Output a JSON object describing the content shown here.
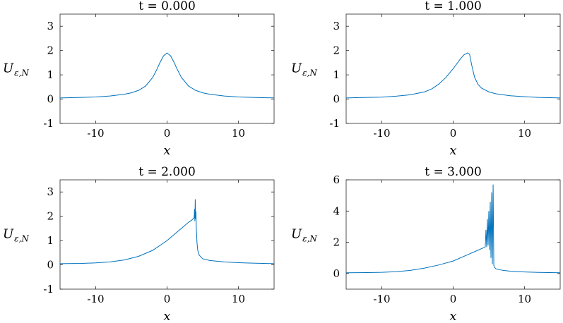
{
  "chart_data": [
    {
      "type": "line",
      "title": "t = 0.000",
      "xlabel": "x",
      "ylabel_main": "U",
      "ylabel_sub": "ε,N",
      "xlim": [
        -15,
        15
      ],
      "ylim": [
        -1,
        3.5
      ],
      "xticks": [
        -10,
        0,
        10
      ],
      "xtick_labels": [
        "-10",
        "0",
        "10"
      ],
      "yticks": [
        -1,
        0,
        1,
        2,
        3
      ],
      "ytick_labels": [
        "-1",
        "0",
        "1",
        "2",
        "3"
      ],
      "series": [
        {
          "color": "#0072BD",
          "x": [
            -15,
            -12,
            -10,
            -8,
            -6,
            -5,
            -4,
            -3,
            -2,
            -1.5,
            -1,
            -0.5,
            0,
            0.5,
            1,
            1.5,
            2,
            3,
            4,
            5,
            6,
            8,
            10,
            12,
            15
          ],
          "y": [
            0.05,
            0.07,
            0.09,
            0.13,
            0.2,
            0.26,
            0.36,
            0.54,
            0.9,
            1.18,
            1.5,
            1.78,
            1.9,
            1.78,
            1.5,
            1.18,
            0.9,
            0.54,
            0.36,
            0.26,
            0.2,
            0.13,
            0.09,
            0.07,
            0.05
          ]
        }
      ]
    },
    {
      "type": "line",
      "title": "t = 1.000",
      "xlabel": "x",
      "ylabel_main": "U",
      "ylabel_sub": "ε,N",
      "xlim": [
        -15,
        15
      ],
      "ylim": [
        -1,
        3.5
      ],
      "xticks": [
        -10,
        0,
        10
      ],
      "xtick_labels": [
        "-10",
        "0",
        "10"
      ],
      "yticks": [
        -1,
        0,
        1,
        2,
        3
      ],
      "ytick_labels": [
        "-1",
        "0",
        "1",
        "2",
        "3"
      ],
      "series": [
        {
          "color": "#0072BD",
          "x": [
            -15,
            -12,
            -10,
            -8,
            -6,
            -4,
            -3,
            -2,
            -1,
            0,
            0.5,
            1,
            1.5,
            2,
            2.3,
            2.6,
            3,
            3.5,
            4,
            5,
            6,
            8,
            10,
            12,
            15
          ],
          "y": [
            0.05,
            0.07,
            0.08,
            0.12,
            0.18,
            0.3,
            0.42,
            0.62,
            0.9,
            1.25,
            1.45,
            1.65,
            1.82,
            1.9,
            1.85,
            1.4,
            0.9,
            0.6,
            0.45,
            0.3,
            0.22,
            0.14,
            0.1,
            0.07,
            0.05
          ]
        }
      ]
    },
    {
      "type": "line",
      "title": "t = 2.000",
      "xlabel": "x",
      "ylabel_main": "U",
      "ylabel_sub": "ε,N",
      "xlim": [
        -15,
        15
      ],
      "ylim": [
        -1,
        3.5
      ],
      "xticks": [
        -10,
        0,
        10
      ],
      "xtick_labels": [
        "-10",
        "0",
        "10"
      ],
      "yticks": [
        -1,
        0,
        1,
        2,
        3
      ],
      "ytick_labels": [
        "-1",
        "0",
        "1",
        "2",
        "3"
      ],
      "series": [
        {
          "color": "#0072BD",
          "x": [
            -15,
            -12,
            -10,
            -8,
            -6,
            -4,
            -2,
            0,
            1,
            2,
            3,
            3.5,
            3.8,
            3.85,
            3.9,
            3.95,
            4.0,
            4.05,
            4.1,
            4.2,
            4.3,
            4.5,
            5,
            6,
            8,
            10,
            12,
            15
          ],
          "y": [
            0.05,
            0.06,
            0.08,
            0.12,
            0.2,
            0.35,
            0.6,
            1.0,
            1.25,
            1.5,
            1.75,
            1.85,
            1.95,
            2.3,
            1.8,
            2.7,
            1.9,
            2.2,
            1.5,
            0.9,
            0.6,
            0.4,
            0.25,
            0.18,
            0.12,
            0.09,
            0.07,
            0.05
          ]
        }
      ]
    },
    {
      "type": "line",
      "title": "t = 3.000",
      "xlabel": "x",
      "ylabel_main": "U",
      "ylabel_sub": "ε,N",
      "xlim": [
        -15,
        15
      ],
      "ylim": [
        -1,
        6
      ],
      "xticks": [
        -10,
        0,
        10
      ],
      "xtick_labels": [
        "-10",
        "0",
        "10"
      ],
      "yticks": [
        0,
        2,
        4,
        6
      ],
      "ytick_labels": [
        "0",
        "2",
        "4",
        "6"
      ],
      "series": [
        {
          "color": "#0072BD",
          "x": [
            -15,
            -12,
            -10,
            -8,
            -6,
            -4,
            -2,
            0,
            2,
            3,
            4,
            4.5,
            4.6,
            4.7,
            4.8,
            4.9,
            5.0,
            5.1,
            5.2,
            5.3,
            5.4,
            5.5,
            5.6,
            5.7,
            5.8,
            6,
            7,
            8,
            10,
            12,
            15
          ],
          "y": [
            0.05,
            0.06,
            0.08,
            0.12,
            0.2,
            0.35,
            0.55,
            0.8,
            1.2,
            1.4,
            1.6,
            1.7,
            2.8,
            1.7,
            3.5,
            1.8,
            4.0,
            1.5,
            4.6,
            1.0,
            5.2,
            0.6,
            5.7,
            0.5,
            0.4,
            0.3,
            0.2,
            0.15,
            0.1,
            0.07,
            0.05
          ]
        }
      ]
    }
  ]
}
